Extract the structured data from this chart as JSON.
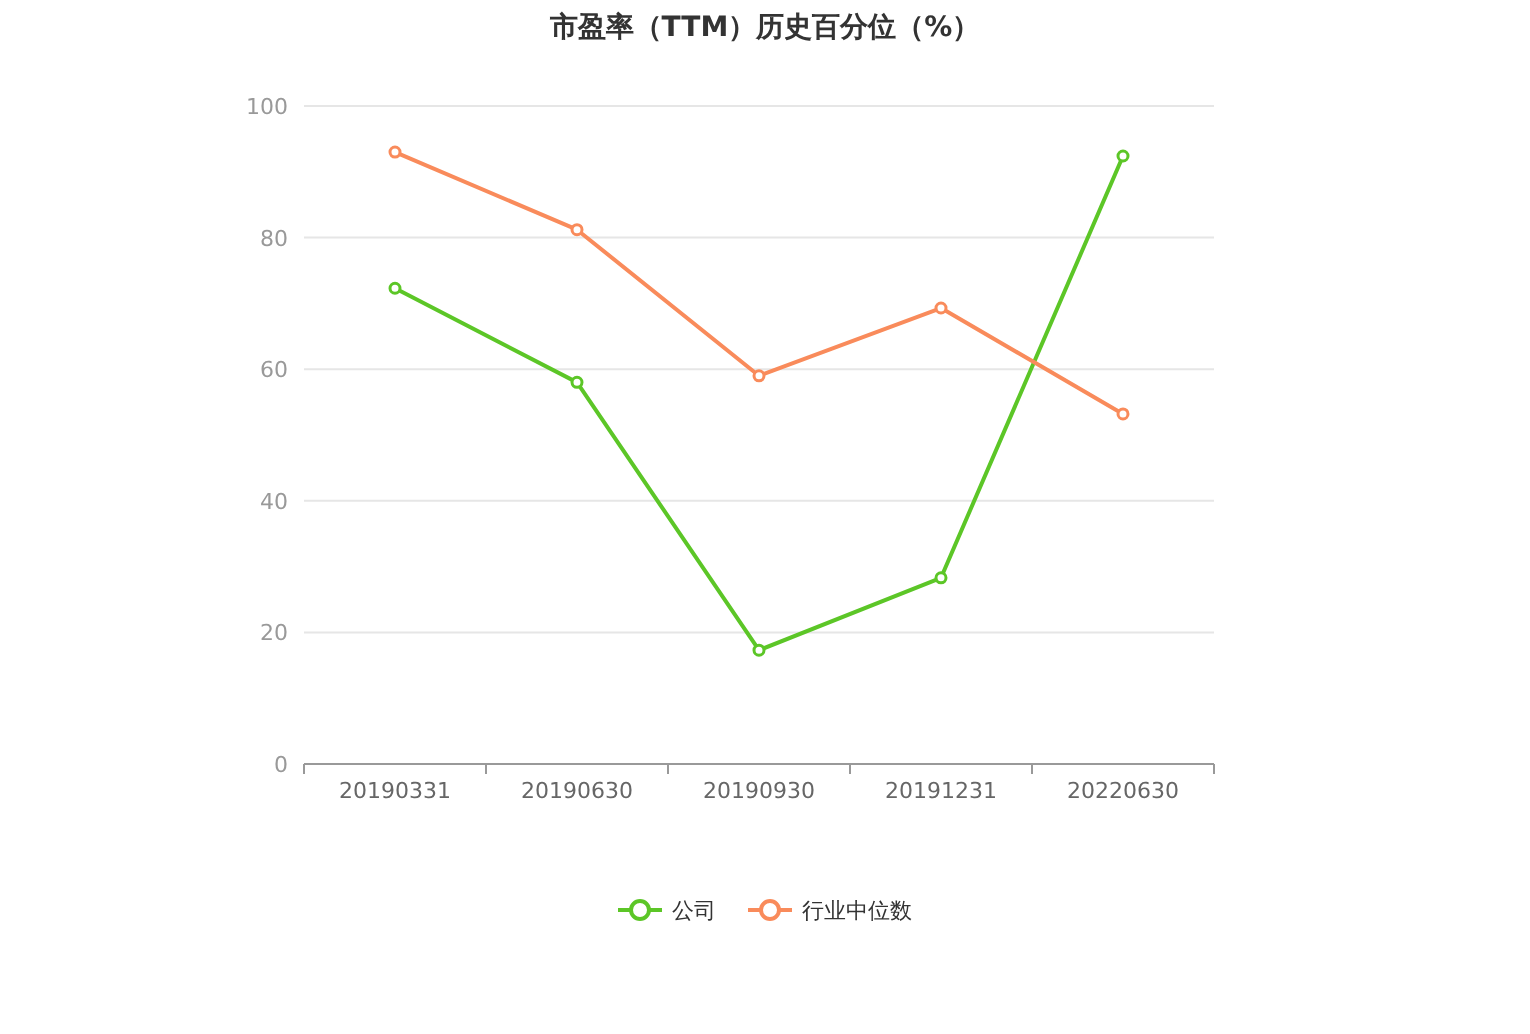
{
  "chart_data": {
    "type": "line",
    "title": "市盈率（TTM）历史百分位（%）",
    "categories": [
      "20190331",
      "20190630",
      "20190930",
      "20191231",
      "20220630"
    ],
    "series": [
      {
        "name": "公司",
        "color": "#5cc627",
        "values": [
          72.3,
          58.0,
          17.3,
          28.3,
          92.4
        ]
      },
      {
        "name": "行业中位数",
        "color": "#f98b5b",
        "values": [
          93.0,
          81.2,
          59.0,
          69.3,
          53.2
        ]
      }
    ],
    "ylim": [
      0,
      100
    ],
    "yticks": [
      0,
      20,
      40,
      60,
      80,
      100
    ],
    "grid": "y",
    "legend": "bottom",
    "marker": "circle",
    "line_style": "solid"
  }
}
